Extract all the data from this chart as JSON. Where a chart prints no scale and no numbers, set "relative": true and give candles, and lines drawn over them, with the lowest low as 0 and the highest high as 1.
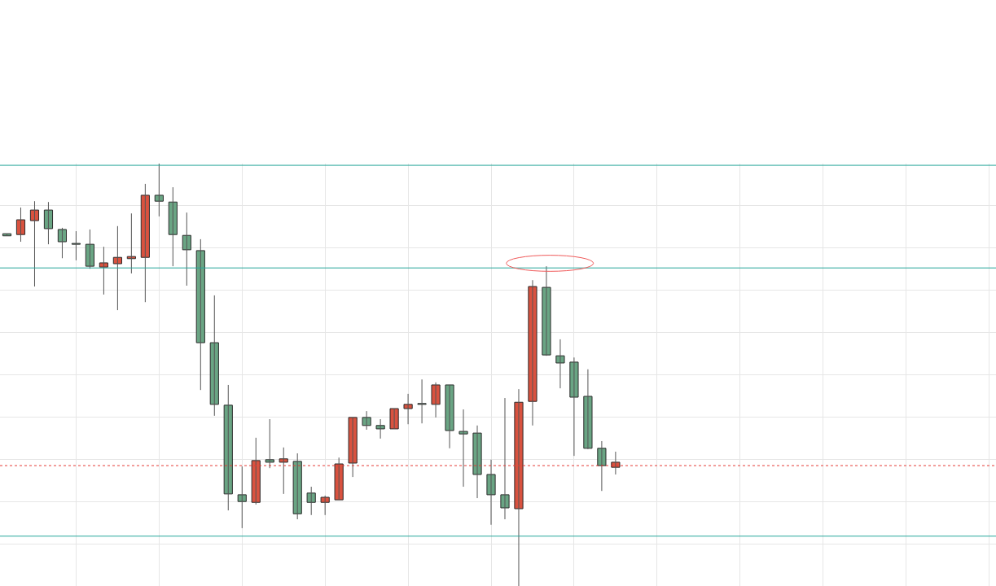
{
  "chart_data": {
    "type": "candlestick",
    "relative": true,
    "grid": true,
    "categories": [
      null,
      null,
      null,
      null,
      null,
      null,
      null,
      null,
      null,
      null,
      null,
      null,
      null,
      null,
      null,
      null,
      null,
      null,
      null,
      null,
      null,
      null,
      null,
      null,
      null,
      null,
      null,
      null,
      null,
      null,
      null,
      null,
      null,
      null,
      null,
      null,
      null,
      null,
      null,
      null,
      null,
      null,
      null,
      null,
      null,
      null,
      null,
      null,
      null,
      null,
      null,
      null,
      null,
      null,
      null,
      null,
      null,
      null,
      null,
      null,
      null,
      null,
      null,
      null,
      null,
      null,
      null,
      null,
      null,
      null,
      null,
      null
    ],
    "ohlc": [
      [
        0.834,
        0.834,
        0.829,
        0.829
      ],
      [
        0.832,
        0.896,
        0.815,
        0.867
      ],
      [
        0.865,
        0.911,
        0.709,
        0.89
      ],
      [
        0.89,
        0.909,
        0.809,
        0.846
      ],
      [
        0.844,
        0.848,
        0.776,
        0.815
      ],
      [
        0.811,
        0.84,
        0.771,
        0.809
      ],
      [
        0.809,
        0.844,
        0.751,
        0.757
      ],
      [
        0.755,
        0.803,
        0.69,
        0.765
      ],
      [
        0.763,
        0.852,
        0.653,
        0.778
      ],
      [
        0.775,
        0.882,
        0.74,
        0.78
      ],
      [
        0.778,
        0.952,
        0.672,
        0.925
      ],
      [
        0.925,
        1.0,
        0.875,
        0.911
      ],
      [
        0.909,
        0.944,
        0.757,
        0.832
      ],
      [
        0.83,
        0.884,
        0.711,
        0.796
      ],
      [
        0.794,
        0.821,
        0.464,
        0.576
      ],
      [
        0.576,
        0.688,
        0.403,
        0.43
      ],
      [
        0.428,
        0.476,
        0.179,
        0.218
      ],
      [
        0.216,
        0.283,
        0.137,
        0.2
      ],
      [
        0.198,
        0.351,
        0.193,
        0.297
      ],
      [
        0.299,
        0.395,
        0.279,
        0.293
      ],
      [
        0.293,
        0.328,
        0.218,
        0.301
      ],
      [
        0.295,
        0.314,
        0.158,
        0.171
      ],
      [
        0.22,
        0.235,
        0.168,
        0.198
      ],
      [
        0.198,
        0.214,
        0.168,
        0.21
      ],
      [
        0.204,
        0.304,
        0.204,
        0.289
      ],
      [
        0.291,
        0.399,
        0.258,
        0.399
      ],
      [
        0.399,
        0.414,
        0.37,
        0.38
      ],
      [
        0.38,
        0.395,
        0.349,
        0.372
      ],
      [
        0.372,
        0.42,
        0.372,
        0.42
      ],
      [
        0.42,
        0.455,
        0.383,
        0.43
      ],
      [
        0.432,
        0.489,
        0.385,
        0.43
      ],
      [
        0.43,
        0.482,
        0.399,
        0.476
      ],
      [
        0.476,
        0.476,
        0.326,
        0.368
      ],
      [
        0.366,
        0.418,
        0.235,
        0.36
      ],
      [
        0.362,
        0.38,
        0.208,
        0.264
      ],
      [
        0.264,
        0.299,
        0.145,
        0.216
      ],
      [
        0.216,
        0.445,
        0.158,
        0.185
      ],
      [
        0.183,
        0.466,
        0.0,
        0.435
      ],
      [
        0.437,
        0.724,
        0.38,
        0.709
      ],
      [
        0.707,
        0.757,
        0.545,
        0.547
      ],
      [
        0.545,
        0.584,
        0.468,
        0.528
      ],
      [
        0.53,
        0.541,
        0.308,
        0.447
      ],
      [
        0.449,
        0.513,
        0.324,
        0.326
      ],
      [
        0.326,
        0.343,
        0.225,
        0.285
      ],
      [
        0.281,
        0.318,
        0.264,
        0.293
      ],
      null,
      null,
      null,
      null,
      null,
      null,
      null,
      null,
      null,
      null,
      null,
      null,
      null,
      null,
      null,
      null,
      null,
      null,
      null,
      null,
      null,
      null,
      null,
      null,
      null,
      null,
      null
    ],
    "colors": [
      "#6aa584",
      "#d9523f",
      "#d9523f",
      "#6aa584",
      "#6aa584",
      "#6aa584",
      "#6aa584",
      "#d9523f",
      "#d9523f",
      "#d9523f",
      "#d9523f",
      "#6aa584",
      "#6aa584",
      "#6aa584",
      "#6aa584",
      "#6aa584",
      "#6aa584",
      "#6aa584",
      "#d9523f",
      "#6aa584",
      "#d9523f",
      "#6aa584",
      "#6aa584",
      "#d9523f",
      "#d9523f",
      "#d9523f",
      "#6aa584",
      "#6aa584",
      "#d9523f",
      "#d9523f",
      "#6aa584",
      "#d9523f",
      "#6aa584",
      "#6aa584",
      "#6aa584",
      "#6aa584",
      "#6aa584",
      "#d9523f",
      "#d9523f",
      "#6aa584",
      "#6aa584",
      "#6aa584",
      "#6aa584",
      "#6aa584",
      "#d9523f",
      null,
      null,
      null,
      null,
      null,
      null,
      null,
      null,
      null,
      null,
      null,
      null,
      null,
      null,
      null,
      null,
      null,
      null,
      null,
      null,
      null,
      null,
      null,
      null,
      null,
      null,
      null
    ],
    "ref_lines": [
      {
        "axis": "y",
        "value": 0.996,
        "color": "#26a69a",
        "line_style": "solid"
      },
      {
        "axis": "y",
        "value": 0.753,
        "color": "#26a69a",
        "line_style": "solid"
      },
      {
        "axis": "y",
        "value": 0.118,
        "color": "#26a69a",
        "line_style": "solid"
      },
      {
        "axis": "y",
        "value": 0.285,
        "color": "#e53935",
        "line_style": "dotted"
      }
    ]
  }
}
